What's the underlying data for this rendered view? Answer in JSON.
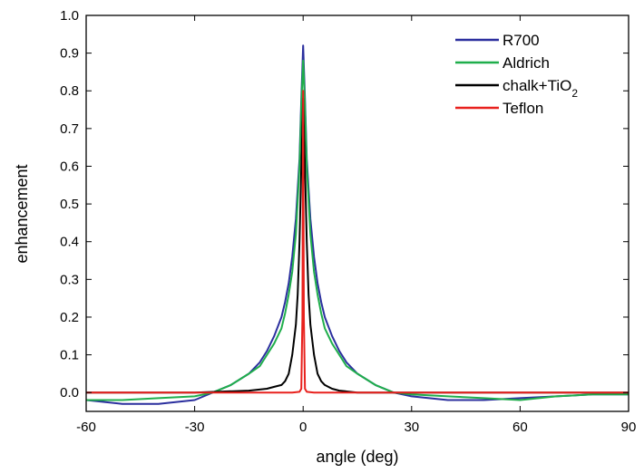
{
  "chart_data": {
    "type": "line",
    "title": "",
    "xlabel": "angle (deg)",
    "ylabel": "enhancement",
    "xlim": [
      -60,
      90
    ],
    "ylim": [
      -0.05,
      1.0
    ],
    "xticks": [
      -60,
      -30,
      0,
      30,
      60,
      90
    ],
    "xtick_labels": [
      "-60",
      "-30",
      "0",
      "30",
      "60",
      "90"
    ],
    "yticks": [
      0.0,
      0.1,
      0.2,
      0.3,
      0.4,
      0.5,
      0.6,
      0.7,
      0.8,
      0.9,
      1.0
    ],
    "ytick_labels": [
      "0.0",
      "0.1",
      "0.2",
      "0.3",
      "0.4",
      "0.5",
      "0.6",
      "0.7",
      "0.8",
      "0.9",
      "1.0"
    ],
    "grid": false,
    "legend_position": "top-right",
    "series": [
      {
        "name": "R700",
        "color": "#2b2f9e",
        "x": [
          -60,
          -50,
          -40,
          -30,
          -25,
          -20,
          -15,
          -12,
          -10,
          -8,
          -6,
          -5,
          -4,
          -3,
          -2,
          -1,
          -0.5,
          0,
          0.5,
          1,
          2,
          3,
          4,
          5,
          6,
          8,
          10,
          12,
          15,
          20,
          25,
          30,
          40,
          50,
          60,
          70,
          80,
          90
        ],
        "y": [
          -0.02,
          -0.03,
          -0.03,
          -0.02,
          0.0,
          0.02,
          0.05,
          0.08,
          0.11,
          0.15,
          0.2,
          0.24,
          0.29,
          0.36,
          0.46,
          0.62,
          0.78,
          0.92,
          0.78,
          0.62,
          0.46,
          0.36,
          0.29,
          0.24,
          0.2,
          0.15,
          0.11,
          0.08,
          0.05,
          0.02,
          0.0,
          -0.01,
          -0.02,
          -0.02,
          -0.015,
          -0.01,
          -0.005,
          -0.005
        ]
      },
      {
        "name": "Aldrich",
        "color": "#1fae4b",
        "x": [
          -60,
          -50,
          -40,
          -30,
          -25,
          -20,
          -15,
          -12,
          -10,
          -8,
          -6,
          -5,
          -4,
          -3,
          -2,
          -1,
          -0.5,
          0,
          0.5,
          1,
          2,
          3,
          4,
          5,
          6,
          8,
          10,
          12,
          15,
          20,
          25,
          30,
          40,
          50,
          60,
          70,
          80,
          90
        ],
        "y": [
          -0.02,
          -0.02,
          -0.015,
          -0.01,
          0.0,
          0.02,
          0.05,
          0.07,
          0.1,
          0.13,
          0.17,
          0.21,
          0.26,
          0.32,
          0.42,
          0.6,
          0.76,
          0.88,
          0.76,
          0.6,
          0.42,
          0.32,
          0.26,
          0.21,
          0.17,
          0.13,
          0.1,
          0.07,
          0.05,
          0.02,
          0.0,
          -0.005,
          -0.01,
          -0.015,
          -0.02,
          -0.01,
          -0.005,
          -0.005
        ]
      },
      {
        "name": "chalk+TiO2",
        "color": "#000000",
        "x": [
          -60,
          -30,
          -15,
          -10,
          -8,
          -6,
          -5,
          -4,
          -3,
          -2,
          -1.5,
          -1,
          -0.5,
          0,
          0.5,
          1,
          1.5,
          2,
          3,
          4,
          5,
          6,
          8,
          10,
          15,
          30,
          60,
          90
        ],
        "y": [
          0.0,
          0.0,
          0.005,
          0.01,
          0.015,
          0.02,
          0.03,
          0.05,
          0.1,
          0.18,
          0.26,
          0.4,
          0.6,
          0.78,
          0.6,
          0.4,
          0.26,
          0.18,
          0.1,
          0.05,
          0.03,
          0.02,
          0.01,
          0.005,
          0.0,
          0.0,
          0.0,
          0.0
        ]
      },
      {
        "name": "Teflon",
        "color": "#e8211d",
        "x": [
          -60,
          -30,
          -10,
          -3,
          -1,
          -0.5,
          -0.2,
          0,
          0.2,
          0.5,
          1,
          3,
          10,
          30,
          60,
          90
        ],
        "y": [
          0.0,
          0.0,
          0.0,
          0.0,
          0.002,
          0.01,
          0.2,
          0.8,
          0.2,
          0.01,
          0.002,
          0.0,
          0.0,
          0.0,
          0.0,
          0.0
        ]
      }
    ],
    "legend": [
      {
        "label": "R700",
        "sub": "",
        "suffix": ""
      },
      {
        "label": "Aldrich",
        "sub": "",
        "suffix": ""
      },
      {
        "label": "chalk+TiO",
        "sub": "2",
        "suffix": ""
      },
      {
        "label": "Teflon",
        "sub": "",
        "suffix": ""
      }
    ]
  }
}
